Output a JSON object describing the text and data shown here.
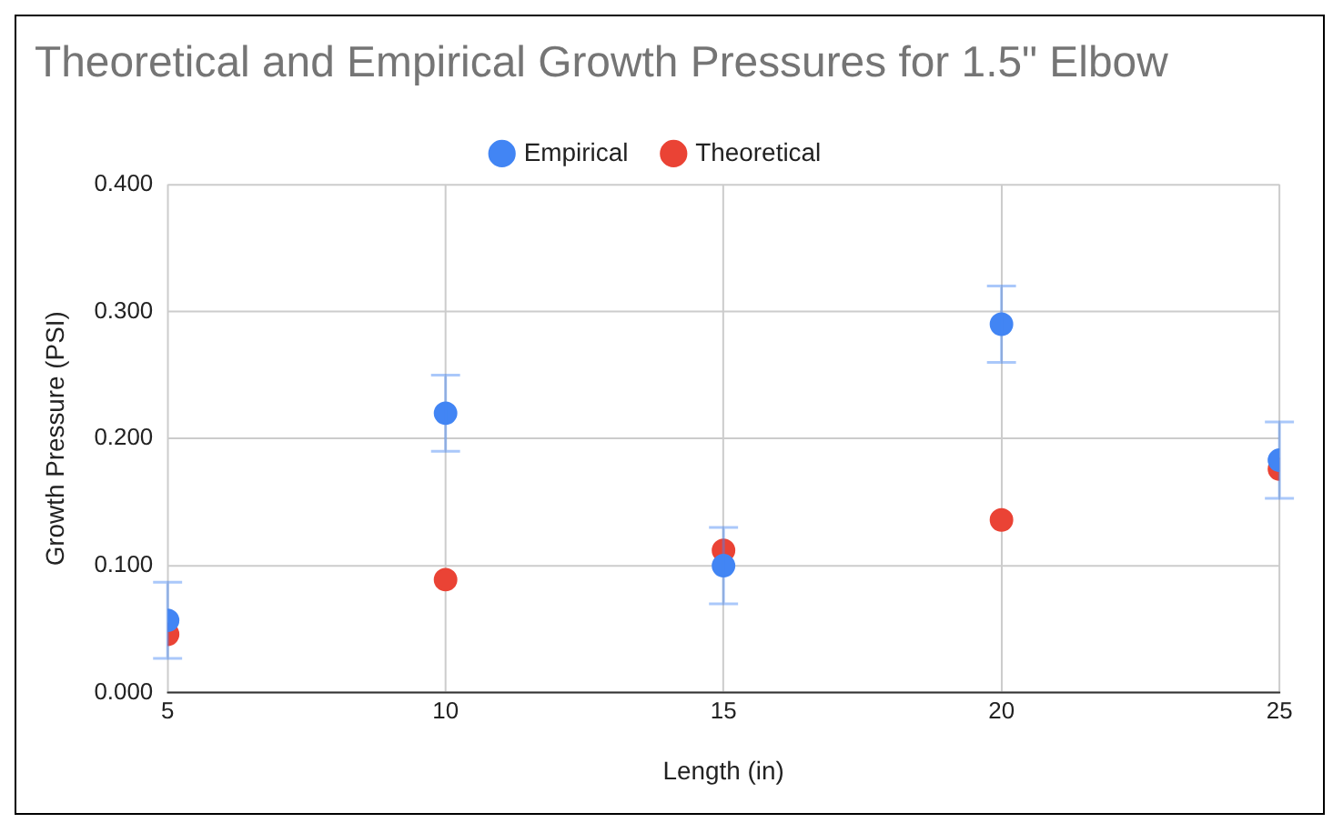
{
  "chart_data": {
    "type": "scatter",
    "title": "Theoretical and Empirical Growth Pressures for 1.5\" Elbow",
    "xlabel": "Length (in)",
    "ylabel": "Growth Pressure (PSI)",
    "x": [
      5,
      10,
      15,
      20,
      25
    ],
    "series": [
      {
        "name": "Empirical",
        "color": "#4285f4",
        "values": [
          0.057,
          0.22,
          0.1,
          0.29,
          0.183
        ],
        "errors": [
          0.03,
          0.03,
          0.03,
          0.03,
          0.03
        ]
      },
      {
        "name": "Theoretical",
        "color": "#ea4335",
        "values": [
          0.046,
          0.089,
          0.112,
          0.136,
          0.176
        ]
      }
    ],
    "xlim": [
      5,
      25
    ],
    "xticks": [
      5,
      10,
      15,
      20,
      25
    ],
    "ylim": [
      0,
      0.4
    ],
    "yticks": [
      {
        "value": 0,
        "label": "0.000"
      },
      {
        "value": 0.1,
        "label": "0.100"
      },
      {
        "value": 0.2,
        "label": "0.200"
      },
      {
        "value": 0.3,
        "label": "0.300"
      },
      {
        "value": 0.4,
        "label": "0.400"
      }
    ],
    "grid": true,
    "legend": "top",
    "marker": "circle"
  }
}
